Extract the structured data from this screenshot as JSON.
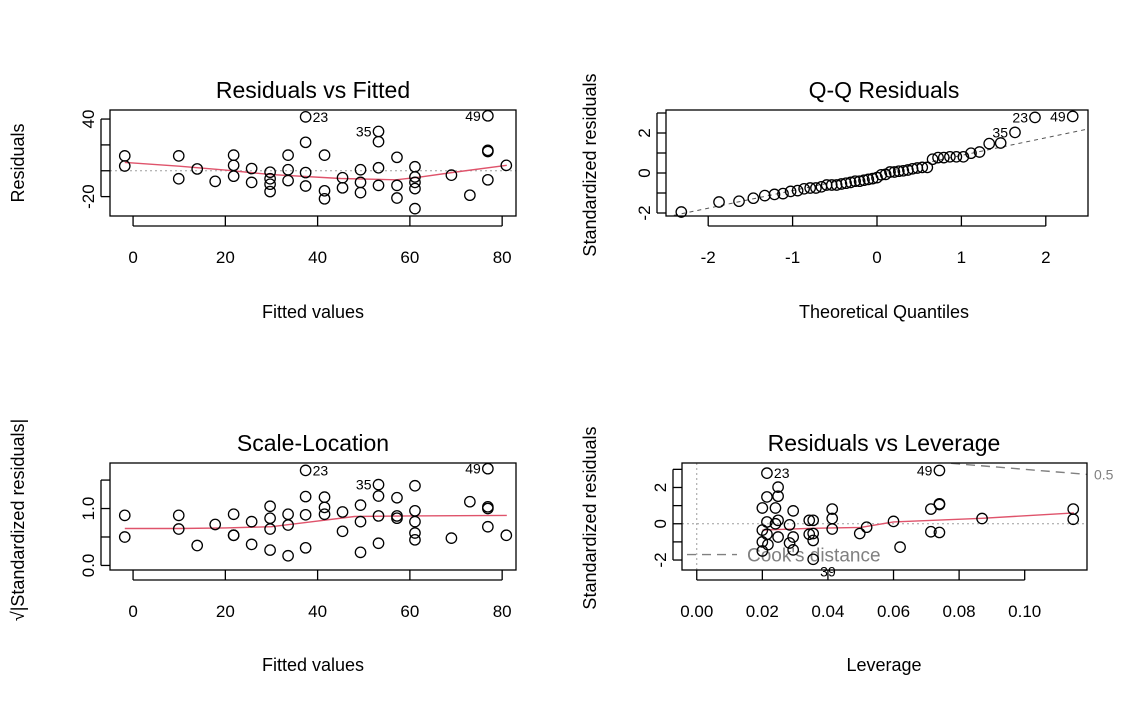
{
  "colors": {
    "points": "#000000",
    "smooth": "#DF536B",
    "reference": "#9E9E9E",
    "cooks": "#808080"
  },
  "chart_data": [
    {
      "type": "scatter",
      "title": "Residuals vs Fitted",
      "xlabel": "Fitted values",
      "ylabel": "Residuals",
      "xlim": [
        -5,
        83
      ],
      "ylim": [
        -35,
        47
      ],
      "xticks": [
        0,
        20,
        40,
        60,
        80
      ],
      "xtick_labels": [
        "0",
        "20",
        "40",
        "60",
        "80"
      ],
      "yticks": [
        -20,
        0,
        20,
        40
      ],
      "ytick_labels": [
        "-20",
        "",
        "",
        "40"
      ],
      "reference_line": {
        "y": 0,
        "style": "dotted"
      },
      "x": [
        -1.8,
        -1.8,
        9.9,
        9.9,
        13.9,
        17.8,
        21.8,
        21.8,
        21.8,
        25.7,
        25.7,
        29.7,
        29.7,
        29.7,
        29.7,
        33.6,
        33.6,
        33.6,
        37.4,
        37.4,
        37.4,
        37.4,
        41.5,
        41.5,
        41.5,
        45.4,
        45.4,
        49.3,
        49.3,
        49.3,
        53.2,
        53.2,
        53.2,
        53.2,
        57.2,
        57.2,
        57.2,
        61.1,
        61.1,
        61.1,
        61.1,
        61.1,
        69,
        73,
        76.9,
        76.9,
        76.9,
        76.9,
        80.9
      ],
      "y": [
        11.5,
        3.7,
        11.5,
        -6.2,
        1.4,
        -8.2,
        12.1,
        4.2,
        -4.2,
        1.7,
        -9.0,
        -1.1,
        -6.2,
        -10.4,
        -16.1,
        12.1,
        0.8,
        -7.6,
        41.7,
        22,
        -1.4,
        -11.8,
        12.1,
        -15.5,
        -21.7,
        -5.4,
        -13.2,
        0.8,
        -9,
        -16.9,
        30.4,
        22.5,
        2.3,
        -11.3,
        10.4,
        -11.3,
        -21.1,
        3.1,
        -4.8,
        -9,
        -13.8,
        -29.3,
        -3.4,
        -18.9,
        42.5,
        15.8,
        14.9,
        -7.0,
        4.2
      ],
      "smooth": {
        "x": [
          -1.8,
          10,
          20,
          30,
          45,
          57,
          62,
          70,
          81
        ],
        "y": [
          6.5,
          3.5,
          0.5,
          -3,
          -6,
          -7,
          -5,
          -1,
          4.2
        ]
      },
      "annotations": [
        {
          "label": "23",
          "x": 37.4,
          "y": 41.7,
          "side": "right"
        },
        {
          "label": "35",
          "x": 53.2,
          "y": 30.4,
          "side": "left"
        },
        {
          "label": "49",
          "x": 76.9,
          "y": 42.5,
          "side": "left"
        }
      ]
    },
    {
      "type": "scatter",
      "title": "Q-Q Residuals",
      "xlabel": "Theoretical Quantiles",
      "ylabel": "Standardized residuals",
      "xlim": [
        -2.5,
        2.5
      ],
      "ylim": [
        -2.15,
        3.15
      ],
      "xticks": [
        -2,
        -1,
        0,
        1,
        2
      ],
      "xtick_labels": [
        "-2",
        "-1",
        "0",
        "1",
        "2"
      ],
      "yticks": [
        -2,
        -1,
        0,
        1,
        2,
        3
      ],
      "ytick_labels": [
        "-2",
        "",
        "0",
        "",
        "2",
        ""
      ],
      "sample_sorted": [
        -1.95,
        -1.45,
        -1.41,
        -1.26,
        -1.13,
        -1.07,
        -1.03,
        -0.92,
        -0.88,
        -0.79,
        -0.75,
        -0.75,
        -0.69,
        -0.6,
        -0.6,
        -0.6,
        -0.55,
        -0.51,
        -0.47,
        -0.41,
        -0.41,
        -0.36,
        -0.32,
        -0.28,
        -0.23,
        -0.09,
        -0.07,
        0.05,
        0.05,
        0.09,
        0.11,
        0.15,
        0.21,
        0.25,
        0.28,
        0.28,
        0.69,
        0.77,
        0.77,
        0.81,
        0.81,
        0.81,
        0.99,
        1.05,
        1.47,
        1.5,
        2.03,
        2.78,
        2.83
      ],
      "reference_line": {
        "x": [
          -2.5,
          2.5
        ],
        "y": [
          -2.2,
          2.2
        ],
        "style": "dashed"
      },
      "annotations": [
        {
          "label": "35",
          "index": 46,
          "side": "left"
        },
        {
          "label": "23",
          "index": 47,
          "side": "left"
        },
        {
          "label": "49",
          "index": 48,
          "side": "left"
        }
      ]
    },
    {
      "type": "scatter",
      "title": "Scale-Location",
      "xlabel": "Fitted values",
      "ylabel": "√|Standardized residuals|",
      "xlim": [
        -5,
        83
      ],
      "ylim": [
        -0.08,
        1.8
      ],
      "xticks": [
        0,
        20,
        40,
        60,
        80
      ],
      "xtick_labels": [
        "0",
        "20",
        "40",
        "60",
        "80"
      ],
      "yticks": [
        0,
        0.5,
        1.0,
        1.5
      ],
      "ytick_labels": [
        "0.0",
        "",
        "1.0",
        ""
      ],
      "x": [
        -1.8,
        -1.8,
        9.9,
        9.9,
        13.9,
        17.8,
        21.8,
        21.8,
        21.8,
        25.7,
        25.7,
        29.7,
        29.7,
        29.7,
        29.7,
        33.6,
        33.6,
        33.6,
        37.4,
        37.4,
        37.4,
        37.4,
        41.5,
        41.5,
        41.5,
        45.4,
        45.4,
        49.3,
        49.3,
        49.3,
        53.2,
        53.2,
        53.2,
        53.2,
        57.2,
        57.2,
        57.2,
        61.1,
        61.1,
        61.1,
        61.1,
        61.1,
        69,
        73,
        76.9,
        76.9,
        76.9,
        76.9,
        80.9
      ],
      "y": [
        0.88,
        0.5,
        0.88,
        0.64,
        0.35,
        0.72,
        0.9,
        0.53,
        0.53,
        0.37,
        0.77,
        0.27,
        0.64,
        0.83,
        1.04,
        0.9,
        0.17,
        0.71,
        1.67,
        1.21,
        0.31,
        0.89,
        0.9,
        1.02,
        1.2,
        0.6,
        0.94,
        0.23,
        0.77,
        1.06,
        1.42,
        1.22,
        0.39,
        0.87,
        0.83,
        0.87,
        1.19,
        0.45,
        0.57,
        0.77,
        0.96,
        1.4,
        0.48,
        1.12,
        1.7,
        1.03,
        1.0,
        0.68,
        0.53
      ],
      "smooth": {
        "x": [
          -1.8,
          10,
          20,
          30,
          38,
          48,
          60,
          81
        ],
        "y": [
          0.65,
          0.65,
          0.66,
          0.68,
          0.76,
          0.86,
          0.87,
          0.88
        ]
      },
      "annotations": [
        {
          "label": "23",
          "index": 18,
          "side": "right"
        },
        {
          "label": "35",
          "index": 30,
          "side": "left"
        },
        {
          "label": "49",
          "index": 44,
          "side": "left"
        }
      ]
    },
    {
      "type": "scatter",
      "title": "Residuals vs Leverage",
      "xlabel": "Leverage",
      "ylabel": "Standardized residuals",
      "xlim": [
        -0.0045,
        0.119
      ],
      "ylim": [
        -2.55,
        3.35
      ],
      "xticks": [
        0,
        0.02,
        0.04,
        0.06,
        0.08,
        0.1
      ],
      "xtick_labels": [
        "0.00",
        "0.02",
        "0.04",
        "0.06",
        "0.08",
        "0.10"
      ],
      "yticks": [
        -2,
        -1,
        0,
        1,
        2,
        3
      ],
      "ytick_labels": [
        "-2",
        "",
        "0",
        "",
        "2",
        ""
      ],
      "x": [
        0.0214,
        0.0248,
        0.0214,
        0.0248,
        0.02,
        0.024,
        0.0294,
        0.0214,
        0.0248,
        0.024,
        0.0283,
        0.02,
        0.0214,
        0.0248,
        0.0294,
        0.02,
        0.0217,
        0.0283,
        0.02,
        0.0294,
        0.0343,
        0.0355,
        0.0343,
        0.0355,
        0.0355,
        0.0355,
        0.0413,
        0.0413,
        0.0413,
        0.0497,
        0.0518,
        0.06,
        0.062,
        0.0714,
        0.074,
        0.074,
        0.0714,
        0.074,
        0.074,
        0.087,
        0.1148,
        0.1148
      ],
      "y": [
        2.79,
        2.02,
        1.48,
        1.52,
        0.87,
        0.87,
        0.71,
        0.1,
        0.19,
        0.0,
        -0.06,
        -0.35,
        -0.58,
        -0.73,
        -0.73,
        -1.0,
        -1.15,
        -1.06,
        -1.5,
        -1.44,
        0.19,
        0.19,
        -0.58,
        -0.54,
        -0.92,
        -1.96,
        0.81,
        0.29,
        -0.29,
        -0.54,
        -0.19,
        0.13,
        -1.29,
        0.81,
        1.06,
        1.1,
        -0.44,
        -0.48,
        2.94,
        0.29,
        0.81,
        0.25
      ],
      "smooth": {
        "x": [
          0.02,
          0.035,
          0.05,
          0.06,
          0.087,
          0.115
        ],
        "y": [
          -0.35,
          -0.25,
          -0.2,
          0.1,
          0.3,
          0.6
        ]
      },
      "cooks_contour": {
        "level": "0.5",
        "x": [
          0.073,
          0.119
        ],
        "y": [
          3.4,
          2.72
        ]
      },
      "legend": {
        "label": "Cook's distance",
        "placement": "bottom-left"
      },
      "annotations": [
        {
          "label": "23",
          "index": 0,
          "side": "right"
        },
        {
          "label": "49",
          "index": 38,
          "side": "left"
        },
        {
          "label": "39",
          "index": 25,
          "side": "below-right"
        }
      ]
    }
  ]
}
